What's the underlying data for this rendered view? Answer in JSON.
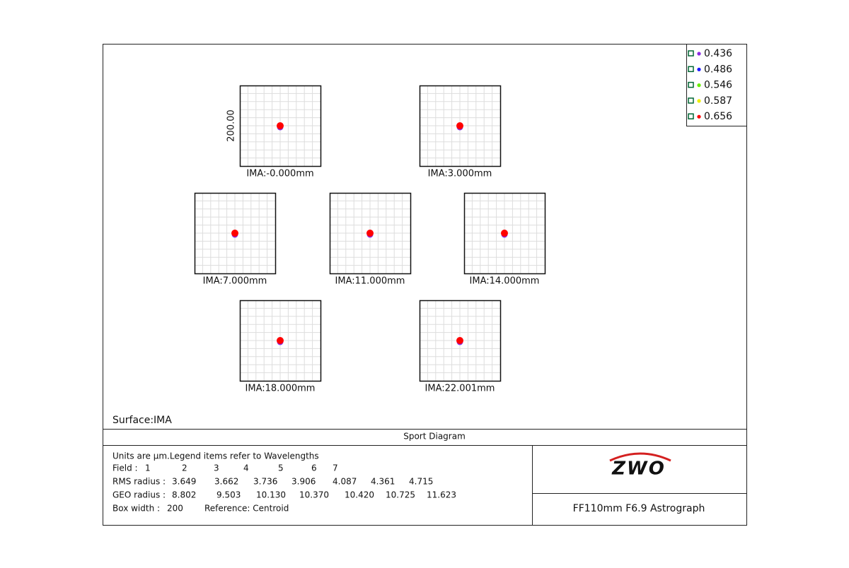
{
  "legend": [
    {
      "label": "0.436",
      "color": "#8a2be2"
    },
    {
      "label": "0.486",
      "color": "#1a1aff"
    },
    {
      "label": "0.546",
      "color": "#66ee00"
    },
    {
      "label": "0.587",
      "color": "#eeee00"
    },
    {
      "label": "0.656",
      "color": "#ff0000"
    }
  ],
  "box_scale_label": "200.00",
  "fields": [
    "IMA:-0.000mm",
    "IMA:3.000mm",
    "IMA:7.000mm",
    "IMA:11.000mm",
    "IMA:14.000mm",
    "IMA:18.000mm",
    "IMA:22.001mm"
  ],
  "surface": "Surface:IMA",
  "footer": {
    "title": "Sport Diagram",
    "units": "Units are µm.Legend items refer to Wavelengths",
    "field_label": "Field :",
    "field_numbers": [
      "1",
      "2",
      "3",
      "4",
      "5",
      "6",
      "7"
    ],
    "rms_label": "RMS radius :",
    "rms": [
      "3.649",
      "3.662",
      "3.736",
      "3.906",
      "4.087",
      "4.361",
      "4.715"
    ],
    "geo_label": "GEO radius :",
    "geo": [
      "8.802",
      "9.503",
      "10.130",
      "10.370",
      "10.420",
      "10.725",
      "11.623"
    ],
    "box_width_label": "Box width :",
    "box_width": "200",
    "reference": "Reference: Centroid",
    "logo": "ZWO",
    "product": "FF110mm F6.9 Astrograph"
  }
}
